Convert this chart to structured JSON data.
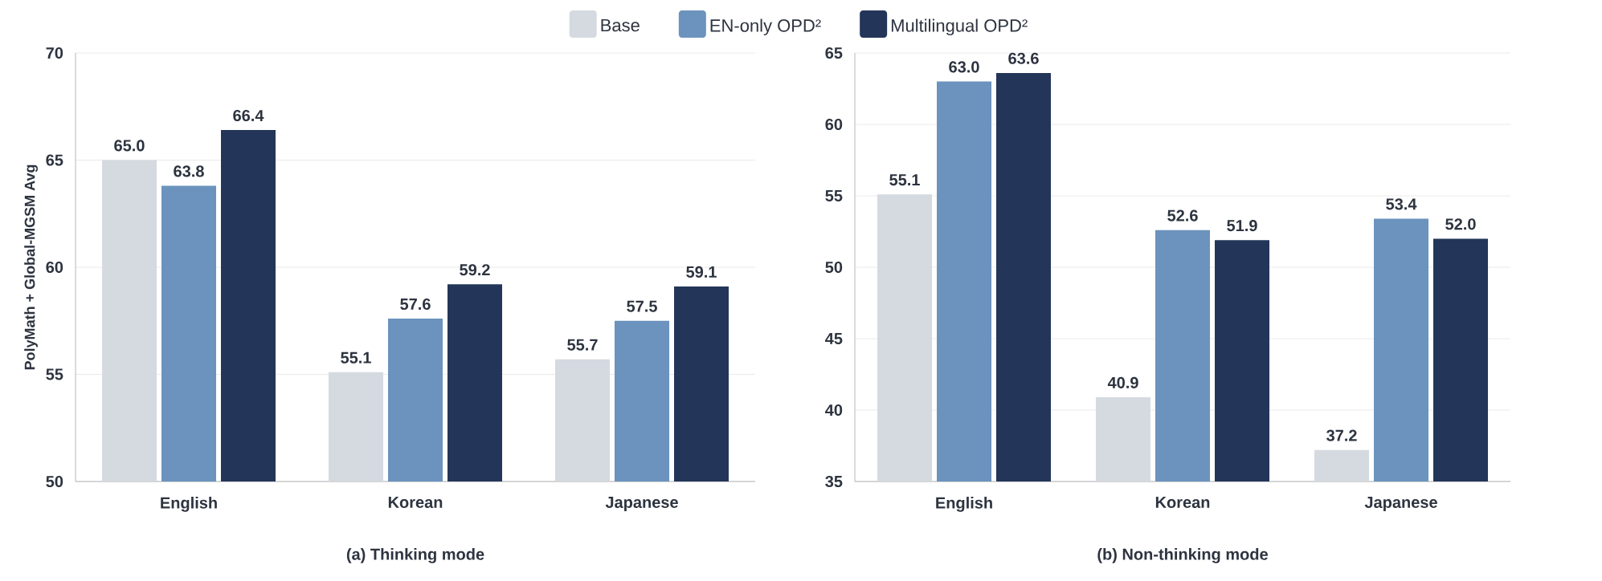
{
  "chart_data": [
    {
      "type": "bar",
      "title": "(a) Thinking mode",
      "ylabel": "PolyMath + Global-MGSM Avg",
      "categories": [
        "English",
        "Korean",
        "Japanese"
      ],
      "ylim": [
        50,
        70
      ],
      "yticks": [
        50,
        55,
        60,
        65,
        70
      ],
      "grid": "y",
      "legend": "top",
      "series": [
        {
          "name": "Base",
          "color": "#d5d9e0",
          "values": [
            65.0,
            55.1,
            55.7
          ],
          "value_labels": [
            "65.0",
            "55.1",
            "55.7"
          ]
        },
        {
          "name": "EN-only OPD²",
          "color": "#6b93bd",
          "values": [
            63.8,
            57.6,
            57.5
          ],
          "value_labels": [
            "63.8",
            "57.6",
            "57.5"
          ]
        },
        {
          "name": "Multilingual OPD²",
          "color": "#233659",
          "values": [
            66.4,
            59.2,
            59.1
          ],
          "value_labels": [
            "66.4",
            "59.2",
            "59.1"
          ]
        }
      ]
    },
    {
      "type": "bar",
      "title": "(b) Non-thinking mode",
      "categories": [
        "English",
        "Korean",
        "Japanese"
      ],
      "ylim": [
        35,
        65
      ],
      "yticks": [
        35,
        40,
        45,
        50,
        55,
        60,
        65
      ],
      "grid": "y",
      "series": [
        {
          "color": "#d5d9e0",
          "values": [
            55.1,
            40.9,
            37.2
          ],
          "value_labels": [
            "55.1",
            "40.9",
            "37.2"
          ]
        },
        {
          "color": "#6b93bd",
          "values": [
            63.0,
            52.6,
            53.4
          ],
          "value_labels": [
            "63.0",
            "52.6",
            "53.4"
          ]
        },
        {
          "color": "#233659",
          "values": [
            63.6,
            51.9,
            52.0
          ],
          "value_labels": [
            "63.6",
            "51.9",
            "52.0"
          ]
        }
      ]
    }
  ]
}
